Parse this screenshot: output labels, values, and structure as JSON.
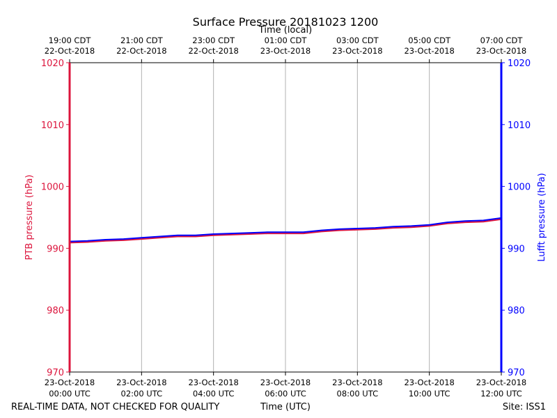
{
  "chart_data": {
    "type": "line",
    "title": "Surface Pressure 20181023 1200",
    "x_top_label": "Time (local)",
    "x_bottom_label": "Time (UTC)",
    "ylabel_left": "PTB pressure (hPa)",
    "ylabel_right": "Lufft pressure (hPa)",
    "ylim": [
      970,
      1020
    ],
    "yticks": [
      970,
      980,
      990,
      1000,
      1010,
      1020
    ],
    "xlim_hours": [
      0,
      12
    ],
    "grid": "vertical",
    "x_ticks_bottom": [
      {
        "h": 0,
        "line1": "23-Oct-2018",
        "line2": "00:00 UTC"
      },
      {
        "h": 2,
        "line1": "23-Oct-2018",
        "line2": "02:00 UTC"
      },
      {
        "h": 4,
        "line1": "23-Oct-2018",
        "line2": "04:00 UTC"
      },
      {
        "h": 6,
        "line1": "23-Oct-2018",
        "line2": "06:00 UTC"
      },
      {
        "h": 8,
        "line1": "23-Oct-2018",
        "line2": "08:00 UTC"
      },
      {
        "h": 10,
        "line1": "23-Oct-2018",
        "line2": "10:00 UTC"
      },
      {
        "h": 12,
        "line1": "23-Oct-2018",
        "line2": "12:00 UTC"
      }
    ],
    "x_ticks_top": [
      {
        "h": 0,
        "line1": "19:00 CDT",
        "line2": "22-Oct-2018"
      },
      {
        "h": 2,
        "line1": "21:00 CDT",
        "line2": "22-Oct-2018"
      },
      {
        "h": 4,
        "line1": "23:00 CDT",
        "line2": "22-Oct-2018"
      },
      {
        "h": 6,
        "line1": "01:00 CDT",
        "line2": "23-Oct-2018"
      },
      {
        "h": 8,
        "line1": "03:00 CDT",
        "line2": "23-Oct-2018"
      },
      {
        "h": 10,
        "line1": "05:00 CDT",
        "line2": "23-Oct-2018"
      },
      {
        "h": 12,
        "line1": "07:00 CDT",
        "line2": "23-Oct-2018"
      }
    ],
    "series": [
      {
        "name": "PTB",
        "color": "#dc143c",
        "axis": "left",
        "x": [
          0,
          0.5,
          1,
          1.5,
          2,
          2.5,
          3,
          3.5,
          4,
          4.5,
          5,
          5.5,
          6,
          6.5,
          7,
          7.5,
          8,
          8.5,
          9,
          9.5,
          10,
          10.5,
          11,
          11.5,
          12
        ],
        "y": [
          990.9,
          991.0,
          991.2,
          991.3,
          991.5,
          991.7,
          991.9,
          991.9,
          992.1,
          992.2,
          992.3,
          992.4,
          992.4,
          992.4,
          992.7,
          992.9,
          993.0,
          993.1,
          993.3,
          993.4,
          993.6,
          994.0,
          994.2,
          994.3,
          994.7
        ]
      },
      {
        "name": "Lufft",
        "color": "#0000ff",
        "axis": "right",
        "x": [
          0,
          0.5,
          1,
          1.5,
          2,
          2.5,
          3,
          3.5,
          4,
          4.5,
          5,
          5.5,
          6,
          6.5,
          7,
          7.5,
          8,
          8.5,
          9,
          9.5,
          10,
          10.5,
          11,
          11.5,
          12
        ],
        "y": [
          991.1,
          991.2,
          991.4,
          991.5,
          991.7,
          991.9,
          992.1,
          992.1,
          992.3,
          992.4,
          992.5,
          992.6,
          992.6,
          992.6,
          992.9,
          993.1,
          993.2,
          993.3,
          993.5,
          993.6,
          993.8,
          994.2,
          994.4,
          994.5,
          994.9
        ]
      }
    ]
  },
  "footer": {
    "left": "REAL-TIME DATA, NOT CHECKED FOR QUALITY",
    "right": "Site: ISS1"
  },
  "colors": {
    "left_axis": "#dc143c",
    "right_axis": "#0000ff",
    "grid": "#b0b0b0"
  }
}
